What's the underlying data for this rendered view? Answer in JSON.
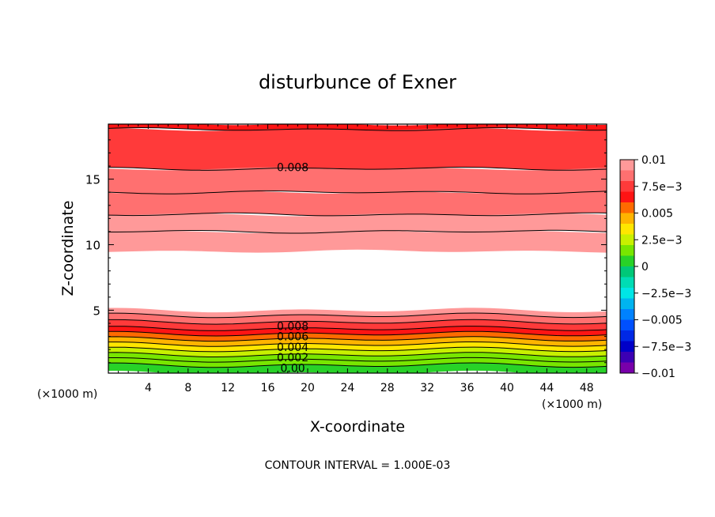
{
  "chart_data": {
    "type": "heatmap",
    "title": "disturbunce of Exner",
    "xlabel": "X-coordinate",
    "ylabel": "Z-coordinate",
    "x_unit_left": "(×1000 m)",
    "x_unit_right": "(×1000 m)",
    "xlim": [
      0,
      50
    ],
    "ylim": [
      0.2,
      19.2
    ],
    "x_ticks": [
      4,
      8,
      12,
      16,
      20,
      24,
      28,
      32,
      36,
      40,
      44,
      48
    ],
    "x_tick_labels": [
      "4",
      "8",
      "12",
      "16",
      "20",
      "24",
      "28",
      "32",
      "36",
      "40",
      "44",
      "48"
    ],
    "y_ticks": [
      5,
      10,
      15
    ],
    "y_tick_labels": [
      "5",
      "10",
      "15"
    ],
    "footer": "CONTOUR INTERVAL = 1.000E-03",
    "contour_interval": 0.001,
    "colorbar": {
      "min": -0.01,
      "max": 0.01,
      "labels": [
        {
          "value": 0.01,
          "text": "0.01"
        },
        {
          "value": 0.0075,
          "text": "7.5e−3"
        },
        {
          "value": 0.005,
          "text": "0.005"
        },
        {
          "value": 0.0025,
          "text": "2.5e−3"
        },
        {
          "value": 0,
          "text": "0"
        },
        {
          "value": -0.0025,
          "text": "−2.5e−3"
        },
        {
          "value": -0.005,
          "text": "−0.005"
        },
        {
          "value": -0.0075,
          "text": "−7.5e−3"
        },
        {
          "value": -0.01,
          "text": "−0.01"
        }
      ],
      "bands": [
        {
          "from": 0.009,
          "to": 0.01,
          "color": "#ff9999"
        },
        {
          "from": 0.008,
          "to": 0.009,
          "color": "#ff7070"
        },
        {
          "from": 0.007,
          "to": 0.008,
          "color": "#ff3a3a"
        },
        {
          "from": 0.006,
          "to": 0.007,
          "color": "#ff1414"
        },
        {
          "from": 0.005,
          "to": 0.006,
          "color": "#ff6a00"
        },
        {
          "from": 0.004,
          "to": 0.005,
          "color": "#ffb400"
        },
        {
          "from": 0.003,
          "to": 0.004,
          "color": "#ffe600"
        },
        {
          "from": 0.002,
          "to": 0.003,
          "color": "#c8f000"
        },
        {
          "from": 0.001,
          "to": 0.002,
          "color": "#78e600"
        },
        {
          "from": 0.0,
          "to": 0.001,
          "color": "#28d228"
        },
        {
          "from": -0.001,
          "to": 0.0,
          "color": "#00c878"
        },
        {
          "from": -0.002,
          "to": -0.001,
          "color": "#00dcb4"
        },
        {
          "from": -0.003,
          "to": -0.002,
          "color": "#00e6e6"
        },
        {
          "from": -0.004,
          "to": -0.003,
          "color": "#00b4f0"
        },
        {
          "from": -0.005,
          "to": -0.004,
          "color": "#0082ff"
        },
        {
          "from": -0.006,
          "to": -0.005,
          "color": "#0050ff"
        },
        {
          "from": -0.007,
          "to": -0.006,
          "color": "#0028e6"
        },
        {
          "from": -0.008,
          "to": -0.007,
          "color": "#0000c8"
        },
        {
          "from": -0.009,
          "to": -0.008,
          "color": "#3c00b4"
        },
        {
          "from": -0.01,
          "to": -0.009,
          "color": "#7800aa"
        }
      ]
    },
    "contour_labels": [
      {
        "x": 18.5,
        "z": 15.9,
        "text": "0.008"
      },
      {
        "x": 18.5,
        "z": 3.8,
        "text": "0.008"
      },
      {
        "x": 18.5,
        "z": 3.0,
        "text": "0.006"
      },
      {
        "x": 18.5,
        "z": 2.2,
        "text": "0.004"
      },
      {
        "x": 18.5,
        "z": 1.4,
        "text": "0.002"
      },
      {
        "x": 18.5,
        "z": 0.6,
        "text": "0.00"
      }
    ],
    "upper_region": {
      "description_levels": "values decrease upward from the lower warm layer; white where value exceeds 0.01",
      "bands": [
        {
          "z_bottom": 18.8,
          "z_top": 19.2,
          "value": 0.0065
        },
        {
          "z_bottom": 15.8,
          "z_top": 18.8,
          "value": 0.0075
        },
        {
          "z_bottom": 14.0,
          "z_top": 15.8,
          "value": 0.0085
        },
        {
          "z_bottom": 12.3,
          "z_top": 14.0,
          "value": 0.0088
        },
        {
          "z_bottom": 11.0,
          "z_top": 12.3,
          "value": 0.0092
        },
        {
          "z_bottom": 9.5,
          "z_top": 11.0,
          "value": 0.0098
        }
      ]
    },
    "lower_region": {
      "bands": [
        {
          "z_bottom": 4.6,
          "z_top": 5.0,
          "value": 0.0095
        },
        {
          "z_bottom": 4.1,
          "z_top": 4.6,
          "value": 0.0088
        },
        {
          "z_bottom": 3.6,
          "z_top": 4.1,
          "value": 0.0075
        },
        {
          "z_bottom": 3.2,
          "z_top": 3.6,
          "value": 0.0068
        },
        {
          "z_bottom": 2.8,
          "z_top": 3.2,
          "value": 0.0058
        },
        {
          "z_bottom": 2.4,
          "z_top": 2.8,
          "value": 0.0048
        },
        {
          "z_bottom": 2.0,
          "z_top": 2.4,
          "value": 0.0038
        },
        {
          "z_bottom": 1.6,
          "z_top": 2.0,
          "value": 0.0028
        },
        {
          "z_bottom": 1.2,
          "z_top": 1.6,
          "value": 0.0018
        },
        {
          "z_bottom": 0.8,
          "z_top": 1.2,
          "value": 0.0012
        },
        {
          "z_bottom": 0.2,
          "z_top": 0.8,
          "value": 0.0005
        }
      ]
    }
  }
}
